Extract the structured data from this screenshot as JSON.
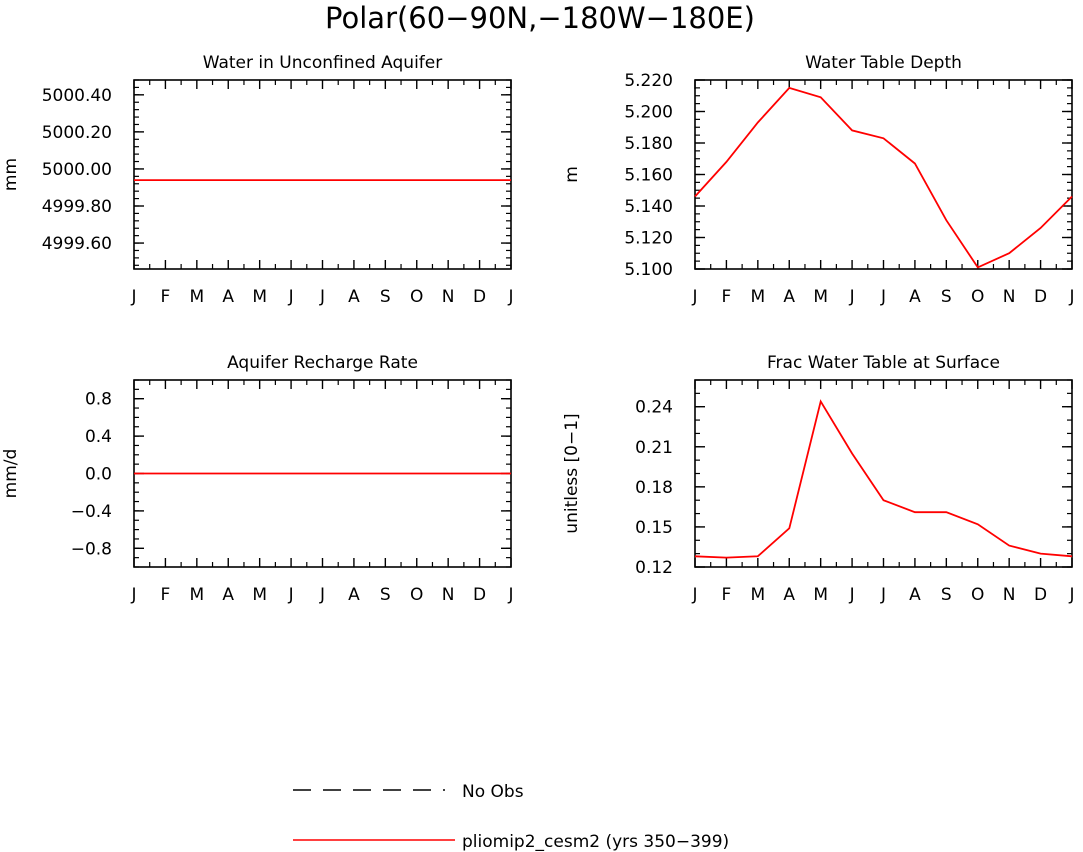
{
  "figure": {
    "title": "Polar(60−90N,−180W−180E)",
    "series_color": "#ff0000"
  },
  "legend": {
    "items": [
      {
        "label": "No Obs",
        "style": "dashed",
        "color": "#000000"
      },
      {
        "label": "pliomip2_cesm2 (yrs 350−399)",
        "style": "solid",
        "color": "#ff0000"
      }
    ]
  },
  "chart_data": [
    {
      "type": "line",
      "title": "Water in Unconfined Aquifer",
      "ylabel": "mm",
      "x": [
        "J",
        "F",
        "M",
        "A",
        "M",
        "J",
        "J",
        "A",
        "S",
        "O",
        "N",
        "D",
        "J"
      ],
      "ylim": [
        4999.46,
        5000.48
      ],
      "yticks": [
        4999.6,
        4999.8,
        5000.0,
        5000.2,
        5000.4
      ],
      "ytick_labels": [
        "4999.60",
        "4999.80",
        "5000.00",
        "5000.20",
        "5000.40"
      ],
      "yminor_step": 0.04,
      "series": [
        {
          "values": [
            4999.94,
            4999.94,
            4999.94,
            4999.94,
            4999.94,
            4999.94,
            4999.94,
            4999.94,
            4999.94,
            4999.94,
            4999.94,
            4999.94,
            4999.94
          ]
        }
      ]
    },
    {
      "type": "line",
      "title": "Water Table Depth",
      "ylabel": "m",
      "x": [
        "J",
        "F",
        "M",
        "A",
        "M",
        "J",
        "J",
        "A",
        "S",
        "O",
        "N",
        "D",
        "J"
      ],
      "ylim": [
        5.1,
        5.22
      ],
      "yticks": [
        5.1,
        5.12,
        5.14,
        5.16,
        5.18,
        5.2,
        5.22
      ],
      "ytick_labels": [
        "5.100",
        "5.120",
        "5.140",
        "5.160",
        "5.180",
        "5.200",
        "5.220"
      ],
      "yminor_step": 0.005,
      "series": [
        {
          "values": [
            5.146,
            5.168,
            5.193,
            5.215,
            5.209,
            5.188,
            5.183,
            5.167,
            5.131,
            5.101,
            5.11,
            5.126,
            5.146
          ]
        }
      ]
    },
    {
      "type": "line",
      "title": "Aquifer Recharge Rate",
      "ylabel": "mm/d",
      "x": [
        "J",
        "F",
        "M",
        "A",
        "M",
        "J",
        "J",
        "A",
        "S",
        "O",
        "N",
        "D",
        "J"
      ],
      "ylim": [
        -1.0,
        1.0
      ],
      "yticks": [
        -0.8,
        -0.4,
        0.0,
        0.4,
        0.8
      ],
      "ytick_labels": [
        "−0.8",
        "−0.4",
        "0.0",
        "0.4",
        "0.8"
      ],
      "yminor_step": 0.1,
      "series": [
        {
          "values": [
            0,
            0,
            0,
            0,
            0,
            0,
            0,
            0,
            0,
            0,
            0,
            0,
            0
          ]
        }
      ]
    },
    {
      "type": "line",
      "title": "Frac Water Table at Surface",
      "ylabel": "unitless [0−1]",
      "x": [
        "J",
        "F",
        "M",
        "A",
        "M",
        "J",
        "J",
        "A",
        "S",
        "O",
        "N",
        "D",
        "J"
      ],
      "ylim": [
        0.12,
        0.26
      ],
      "yticks": [
        0.12,
        0.15,
        0.18,
        0.21,
        0.24
      ],
      "ytick_labels": [
        "0.12",
        "0.15",
        "0.18",
        "0.21",
        "0.24"
      ],
      "yminor_step": 0.01,
      "series": [
        {
          "values": [
            0.128,
            0.127,
            0.128,
            0.149,
            0.244,
            0.205,
            0.17,
            0.161,
            0.161,
            0.152,
            0.136,
            0.13,
            0.128
          ]
        }
      ]
    }
  ]
}
